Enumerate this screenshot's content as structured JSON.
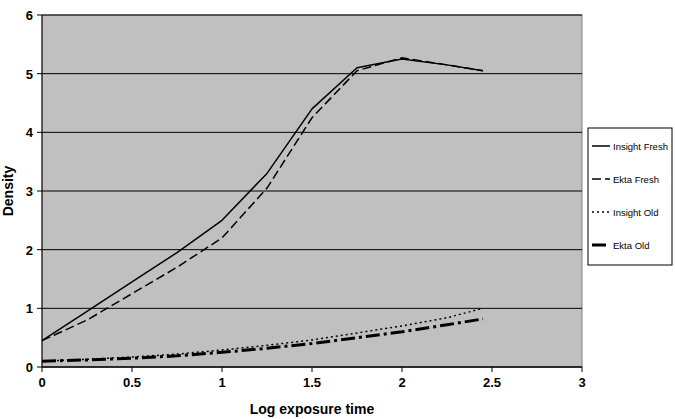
{
  "chart_data": {
    "type": "line",
    "x_label": "Log exposure time",
    "y_label": "Density",
    "x": [
      0,
      0.25,
      0.5,
      0.75,
      1,
      1.25,
      1.5,
      1.75,
      2,
      2.25,
      2.45
    ],
    "series": [
      {
        "name": "Insight Fresh",
        "color": "#000000",
        "line_style": "solid",
        "marker": "none",
        "values": [
          0.45,
          0.95,
          1.45,
          1.95,
          2.5,
          3.3,
          4.4,
          5.1,
          5.25,
          5.15,
          5.05
        ]
      },
      {
        "name": "Ekta Fresh",
        "color": "#000000",
        "line_style": "dashed",
        "marker": "none",
        "values": [
          0.45,
          0.8,
          1.25,
          1.7,
          2.2,
          3.05,
          4.25,
          5.05,
          5.27,
          5.15,
          5.05
        ]
      },
      {
        "name": "Insight Old",
        "color": "#000000",
        "line_style": "dotted",
        "marker": "none",
        "values": [
          0.1,
          0.13,
          0.17,
          0.22,
          0.29,
          0.37,
          0.46,
          0.58,
          0.7,
          0.84,
          1.0
        ]
      },
      {
        "name": "Ekta Old",
        "color": "#000000",
        "line_style": "dashdot",
        "marker": "none",
        "values": [
          0.1,
          0.12,
          0.15,
          0.19,
          0.25,
          0.32,
          0.4,
          0.5,
          0.6,
          0.72,
          0.82
        ]
      }
    ],
    "xlim": [
      0,
      3
    ],
    "xticks": [
      0,
      0.5,
      1,
      1.5,
      2,
      2.5,
      3
    ],
    "ylim": [
      0,
      6
    ],
    "yticks": [
      0,
      1,
      2,
      3,
      4,
      5,
      6
    ],
    "grid": true,
    "legend": "right"
  }
}
